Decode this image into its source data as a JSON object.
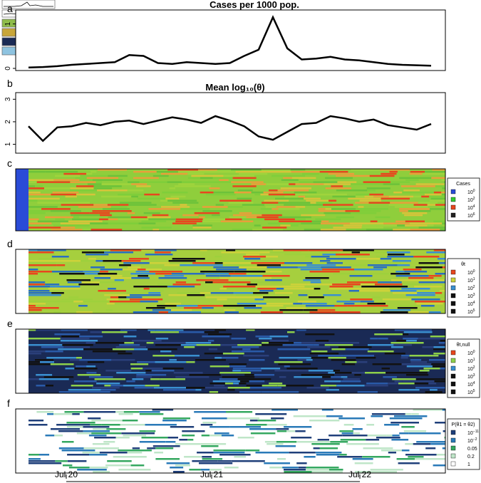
{
  "chart_data": [
    {
      "panel": "a",
      "type": "line",
      "title": "Cases per 1000 pop.",
      "yticks": [
        "0",
        "1"
      ],
      "ylim": [
        0,
        1.25
      ],
      "x": [
        "Jul 20",
        "Jul 20",
        "Jul 20",
        "Jul 20",
        "Jul 20",
        "Jul 20",
        "Jul 20",
        "Jul 20",
        "Jul 20",
        "Jul 20",
        "Jul 21",
        "Jul 21",
        "Jul 21",
        "Jul 21",
        "Jul 21",
        "Jul 21",
        "Jul 21",
        "Jul 21",
        "Jul 21",
        "Jul 21",
        "Jul 22",
        "Jul 22",
        "Jul 22",
        "Jul 22",
        "Jul 22",
        "Jul 22",
        "Jul 22",
        "Jul 22",
        "Jul 22"
      ],
      "series": [
        {
          "values": [
            0.02,
            0.03,
            0.05,
            0.08,
            0.1,
            0.12,
            0.14,
            0.3,
            0.28,
            0.12,
            0.1,
            0.14,
            0.12,
            0.1,
            0.12,
            0.28,
            0.42,
            1.15,
            0.45,
            0.2,
            0.22,
            0.26,
            0.2,
            0.18,
            0.14,
            0.1,
            0.08,
            0.07,
            0.06
          ]
        }
      ]
    },
    {
      "panel": "b",
      "type": "line",
      "title": "Mean log₁₀(θ)",
      "yticks": [
        "1",
        "2",
        "3"
      ],
      "ylim": [
        0.7,
        3.2
      ],
      "series": [
        {
          "values": [
            1.8,
            1.15,
            1.75,
            1.8,
            1.95,
            1.85,
            2.0,
            2.05,
            1.9,
            2.05,
            2.2,
            2.1,
            1.95,
            2.25,
            2.05,
            1.8,
            1.35,
            1.2,
            1.55,
            1.9,
            1.95,
            2.25,
            2.15,
            2.0,
            2.1,
            1.85,
            1.75,
            1.65,
            1.9
          ]
        }
      ]
    },
    {
      "panel": "c",
      "type": "heatmap",
      "legend_title": "Cases",
      "legend": [
        {
          "label": "10",
          "exp": "0",
          "color": "#2a4bd7"
        },
        {
          "label": "10",
          "exp": "2",
          "color": "#33cc33"
        },
        {
          "label": "10",
          "exp": "4",
          "color": "#e8461e"
        },
        {
          "label": "10",
          "exp": "6",
          "color": "#222222"
        }
      ]
    },
    {
      "panel": "d",
      "type": "heatmap",
      "legend_title": "θt",
      "legend": [
        {
          "label": "10",
          "exp": "0",
          "color": "#e8461e"
        },
        {
          "label": "10",
          "exp": "1",
          "color": "#cdd23a"
        },
        {
          "label": "10",
          "exp": "2",
          "color": "#3a8fd0"
        },
        {
          "label": "10",
          "exp": "3",
          "color": "#111111"
        },
        {
          "label": "10",
          "exp": "4",
          "color": "#111111"
        },
        {
          "label": "10",
          "exp": "5",
          "color": "#111111"
        }
      ]
    },
    {
      "panel": "e",
      "type": "heatmap",
      "legend_title": "θt,null",
      "legend": [
        {
          "label": "10",
          "exp": "0",
          "color": "#e8461e"
        },
        {
          "label": "10",
          "exp": "1",
          "color": "#8ed04a"
        },
        {
          "label": "10",
          "exp": "2",
          "color": "#3a8fd0"
        },
        {
          "label": "10",
          "exp": "3",
          "color": "#111111"
        },
        {
          "label": "10",
          "exp": "4",
          "color": "#111111"
        },
        {
          "label": "10",
          "exp": "5",
          "color": "#111111"
        }
      ]
    },
    {
      "panel": "f",
      "type": "heatmap",
      "legend_title": "P(θ1 = θ2)",
      "legend": [
        {
          "label": "10",
          "exp": "−11",
          "color": "#1f3f7a"
        },
        {
          "label": "10",
          "exp": "−2",
          "color": "#2a7ab8"
        },
        {
          "label": "0.05",
          "exp": "",
          "color": "#35a860"
        },
        {
          "label": "0.2",
          "exp": "",
          "color": "#bfe6c8"
        },
        {
          "label": "1",
          "exp": "",
          "color": "#ffffff"
        }
      ]
    }
  ],
  "x_axis": {
    "ticks": [
      "Jul 20",
      "Jul 21",
      "Jul 22"
    ]
  }
}
